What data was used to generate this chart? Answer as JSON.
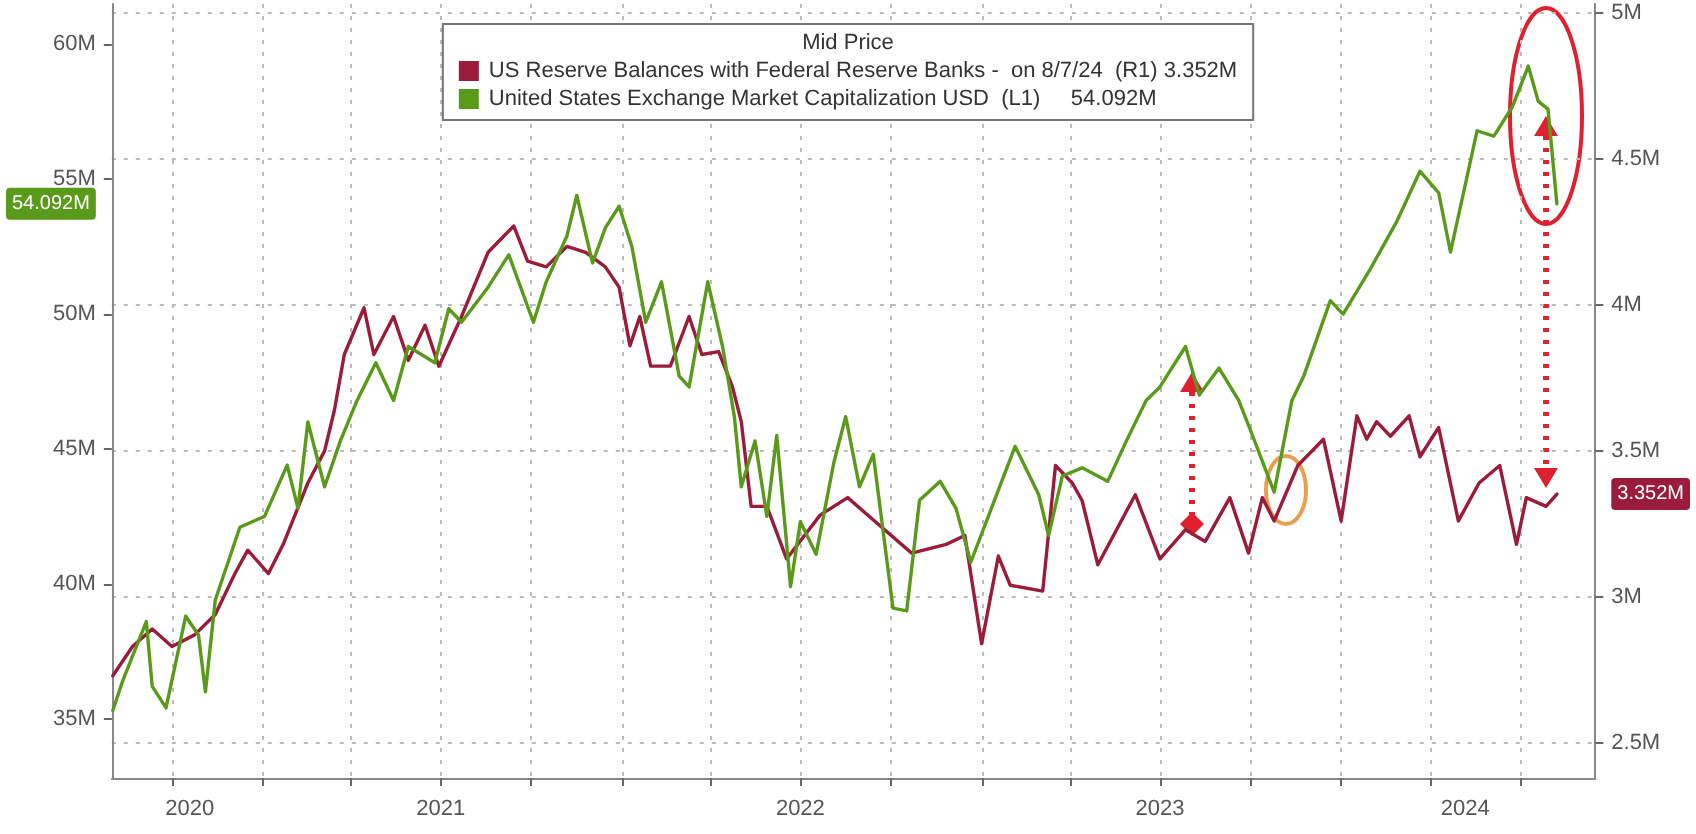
{
  "chart_data": {
    "type": "line",
    "legend": "top",
    "grid": true,
    "xlim": [
      "2020-08-01",
      "2024-09-15"
    ],
    "xticks": [
      {
        "value": "2020-10-01",
        "label": null
      },
      {
        "value": "2021-01-01",
        "label": null
      },
      {
        "value": "2021-04-01",
        "label": null
      },
      {
        "value": "2021-07-01",
        "label": null
      },
      {
        "value": "2021-10-01",
        "label": null
      },
      {
        "value": "2022-01-01",
        "label": null
      },
      {
        "value": "2022-04-01",
        "label": null
      },
      {
        "value": "2022-07-01",
        "label": null
      },
      {
        "value": "2022-10-01",
        "label": null
      },
      {
        "value": "2023-01-01",
        "label": null
      },
      {
        "value": "2023-04-01",
        "label": null
      },
      {
        "value": "2023-07-01",
        "label": null
      },
      {
        "value": "2023-10-01",
        "label": null
      },
      {
        "value": "2024-01-01",
        "label": null
      },
      {
        "value": "2024-04-01",
        "label": null
      },
      {
        "value": "2024-07-01",
        "label": null
      },
      {
        "value": "2020-10-19",
        "label": "2020"
      },
      {
        "value": "2021-07-01",
        "label": "2021"
      },
      {
        "value": "2022-07-01",
        "label": "2022"
      },
      {
        "value": "2023-07-01",
        "label": "2023"
      },
      {
        "value": "2024-05-06",
        "label": "2024"
      }
    ],
    "ylim": [
      32.8,
      61.5
    ],
    "yticks": [
      {
        "value": 35,
        "label": "35M"
      },
      {
        "value": 40,
        "label": "40M"
      },
      {
        "value": 45,
        "label": "45M"
      },
      {
        "value": 50,
        "label": "50M"
      },
      {
        "value": 54.092,
        "label": "54.092M"
      },
      {
        "value": 55,
        "label": "55M"
      },
      {
        "value": 60,
        "label": "60M"
      }
    ],
    "y2lim": [
      2.38,
      5.03
    ],
    "y2ticks": [
      {
        "value": 2.5,
        "label": "2.5M"
      },
      {
        "value": 3,
        "label": "3M"
      },
      {
        "value": 3.352,
        "label": "3.352M"
      },
      {
        "value": 3.5,
        "label": "3.5M"
      },
      {
        "value": 4,
        "label": "4M"
      },
      {
        "value": 4.5,
        "label": "4.5M"
      },
      {
        "value": 5,
        "label": "5M"
      }
    ],
    "series": [
      {
        "name": "US Reserve Balances with Federal Reserve Banks -  on 8/7/24  (R1) 3.352M",
        "color": "#9b1b3a",
        "axis": "y2",
        "x": [
          "2020-08-02",
          "2020-08-22",
          "2020-09-11",
          "2020-10-01",
          "2020-10-24",
          "2020-11-14",
          "2020-12-04",
          "2020-12-17",
          "2021-01-07",
          "2021-01-22",
          "2021-02-16",
          "2021-03-05",
          "2021-03-15",
          "2021-03-25",
          "2021-04-14",
          "2021-04-24",
          "2021-05-14",
          "2021-05-29",
          "2021-06-15",
          "2021-06-29",
          "2021-07-22",
          "2021-08-18",
          "2021-09-13",
          "2021-09-27",
          "2021-10-16",
          "2021-11-06",
          "2021-11-25",
          "2021-12-15",
          "2021-12-29",
          "2022-01-09",
          "2022-01-19",
          "2022-01-30",
          "2022-02-19",
          "2022-03-10",
          "2022-03-23",
          "2022-04-09",
          "2022-04-23",
          "2022-05-02",
          "2022-05-12",
          "2022-05-28",
          "2022-06-17",
          "2022-07-21",
          "2022-08-18",
          "2022-09-21",
          "2022-10-22",
          "2022-11-26",
          "2022-12-15",
          "2023-01-01",
          "2023-01-18",
          "2023-01-30",
          "2023-03-04",
          "2023-03-17",
          "2023-04-03",
          "2023-04-13",
          "2023-04-29",
          "2023-06-06",
          "2023-07-01",
          "2023-07-27",
          "2023-08-16",
          "2023-09-10",
          "2023-09-29",
          "2023-10-13",
          "2023-10-25",
          "2023-11-18",
          "2023-12-14",
          "2024-01-01",
          "2024-01-17",
          "2024-01-27",
          "2024-02-06",
          "2024-02-20",
          "2024-03-10",
          "2024-03-21",
          "2024-04-09",
          "2024-04-29",
          "2024-05-20",
          "2024-06-10",
          "2024-06-27",
          "2024-07-07",
          "2024-07-27",
          "2024-08-07"
        ],
        "values": [
          2.73,
          2.83,
          2.89,
          2.83,
          2.87,
          2.94,
          3.08,
          3.16,
          3.08,
          3.18,
          3.39,
          3.5,
          3.64,
          3.83,
          3.99,
          3.83,
          3.96,
          3.81,
          3.93,
          3.79,
          3.96,
          4.18,
          4.27,
          4.15,
          4.13,
          4.2,
          4.18,
          4.13,
          4.06,
          3.86,
          3.96,
          3.79,
          3.79,
          3.96,
          3.83,
          3.84,
          3.72,
          3.6,
          3.31,
          3.31,
          3.13,
          3.28,
          3.34,
          3.24,
          3.15,
          3.18,
          3.21,
          2.84,
          3.14,
          3.04,
          3.02,
          3.45,
          3.39,
          3.33,
          3.11,
          3.35,
          3.13,
          3.23,
          3.19,
          3.34,
          3.15,
          3.34,
          3.26,
          3.45,
          3.54,
          3.26,
          3.62,
          3.54,
          3.6,
          3.55,
          3.62,
          3.48,
          3.58,
          3.26,
          3.39,
          3.45,
          3.18,
          3.34,
          3.31,
          3.352
        ]
      },
      {
        "name": "United States Exchange Market Capitalization USD  (L1)     54.092M",
        "color": "#5a9a1a",
        "axis": "y",
        "x": [
          "2020-08-02",
          "2020-08-12",
          "2020-09-05",
          "2020-09-11",
          "2020-09-25",
          "2020-10-15",
          "2020-10-28",
          "2020-11-04",
          "2020-11-14",
          "2020-12-09",
          "2021-01-03",
          "2021-01-26",
          "2021-02-06",
          "2021-02-16",
          "2021-03-05",
          "2021-03-21",
          "2021-04-07",
          "2021-04-26",
          "2021-05-14",
          "2021-05-29",
          "2021-06-25",
          "2021-07-09",
          "2021-07-22",
          "2021-08-18",
          "2021-09-08",
          "2021-10-03",
          "2021-10-16",
          "2021-11-06",
          "2021-11-16",
          "2021-12-02",
          "2021-12-15",
          "2021-12-29",
          "2022-01-11",
          "2022-01-25",
          "2022-02-10",
          "2022-02-28",
          "2022-03-10",
          "2022-03-29",
          "2022-04-13",
          "2022-04-25",
          "2022-05-02",
          "2022-05-16",
          "2022-05-28",
          "2022-06-07",
          "2022-06-21",
          "2022-07-01",
          "2022-07-17",
          "2022-08-04",
          "2022-08-16",
          "2022-08-30",
          "2022-09-13",
          "2022-10-03",
          "2022-10-17",
          "2022-10-30",
          "2022-11-20",
          "2022-12-06",
          "2022-12-21",
          "2023-02-04",
          "2023-02-28",
          "2023-03-10",
          "2023-03-24",
          "2023-04-13",
          "2023-05-09",
          "2023-05-28",
          "2023-06-17",
          "2023-07-01",
          "2023-07-27",
          "2023-08-10",
          "2023-08-30",
          "2023-09-19",
          "2023-10-03",
          "2023-10-25",
          "2023-11-12",
          "2023-11-24",
          "2023-12-21",
          "2024-01-03",
          "2024-01-31",
          "2024-02-26",
          "2024-03-21",
          "2024-04-09",
          "2024-04-21",
          "2024-05-18",
          "2024-06-04",
          "2024-06-23",
          "2024-07-09",
          "2024-07-19",
          "2024-07-29",
          "2024-08-07"
        ],
        "values": [
          35.3,
          36.4,
          38.6,
          36.2,
          35.4,
          38.8,
          38.1,
          36.0,
          39.4,
          42.1,
          42.5,
          44.4,
          42.8,
          46.0,
          43.6,
          45.3,
          46.8,
          48.2,
          46.8,
          48.8,
          48.2,
          50.2,
          49.7,
          51.0,
          52.2,
          49.7,
          51.2,
          52.9,
          54.4,
          51.9,
          53.2,
          54.0,
          52.5,
          49.7,
          51.2,
          47.7,
          47.3,
          51.2,
          48.8,
          46.2,
          43.6,
          45.3,
          42.5,
          45.5,
          39.9,
          42.3,
          41.1,
          44.5,
          46.2,
          43.6,
          44.8,
          39.1,
          39.0,
          43.1,
          43.8,
          42.8,
          40.8,
          45.1,
          43.3,
          41.8,
          44.0,
          44.3,
          43.8,
          45.3,
          46.8,
          47.3,
          48.8,
          47.0,
          48.0,
          46.8,
          45.5,
          43.4,
          46.8,
          47.7,
          50.5,
          50.0,
          51.7,
          53.4,
          55.3,
          54.5,
          52.3,
          56.8,
          56.6,
          57.7,
          59.2,
          57.9,
          57.6,
          54.092
        ]
      }
    ],
    "legend_title": "Mid Price"
  }
}
